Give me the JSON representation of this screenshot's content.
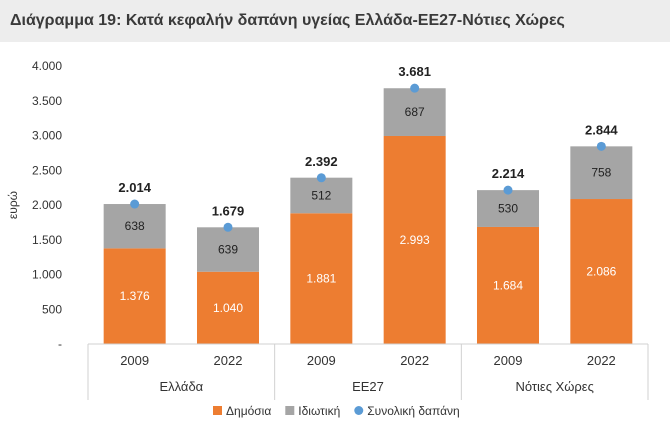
{
  "title": "Διάγραμμα 19: Κατά κεφαλήν δαπάνη υγείας Ελλάδα-ΕΕ27-Νότιες Χώρες",
  "chart_data": {
    "type": "bar",
    "stacked": true,
    "ylabel": "ευρώ",
    "ylim": [
      0,
      4000
    ],
    "yticks": [
      "-",
      "500",
      "1.000",
      "1.500",
      "2.000",
      "2.500",
      "3.000",
      "3.500",
      "4.000"
    ],
    "ytick_values": [
      0,
      500,
      1000,
      1500,
      2000,
      2500,
      3000,
      3500,
      4000
    ],
    "grid": false,
    "legend_position": "bottom",
    "groups": [
      "Ελλάδα",
      "ΕΕ27",
      "Νότιες Χώρες"
    ],
    "categories": [
      "2009",
      "2022",
      "2009",
      "2022",
      "2009",
      "2022"
    ],
    "series": [
      {
        "name": "Δημόσια",
        "color": "#ed7d31",
        "values": [
          1376,
          1040,
          1881,
          2993,
          1684,
          2086
        ],
        "labels": [
          "1.376",
          "1.040",
          "1.881",
          "2.993",
          "1.684",
          "2.086"
        ]
      },
      {
        "name": "Ιδιωτική",
        "color": "#a5a5a5",
        "values": [
          638,
          639,
          512,
          687,
          530,
          758
        ],
        "labels": [
          "638",
          "639",
          "512",
          "687",
          "530",
          "758"
        ]
      }
    ],
    "total": {
      "name": "Συνολική δαπάνη",
      "color": "#5b9bd5",
      "values": [
        2014,
        1679,
        2392,
        3681,
        2214,
        2844
      ],
      "labels": [
        "2.014",
        "1.679",
        "2.392",
        "3.681",
        "2.214",
        "2.844"
      ]
    }
  }
}
